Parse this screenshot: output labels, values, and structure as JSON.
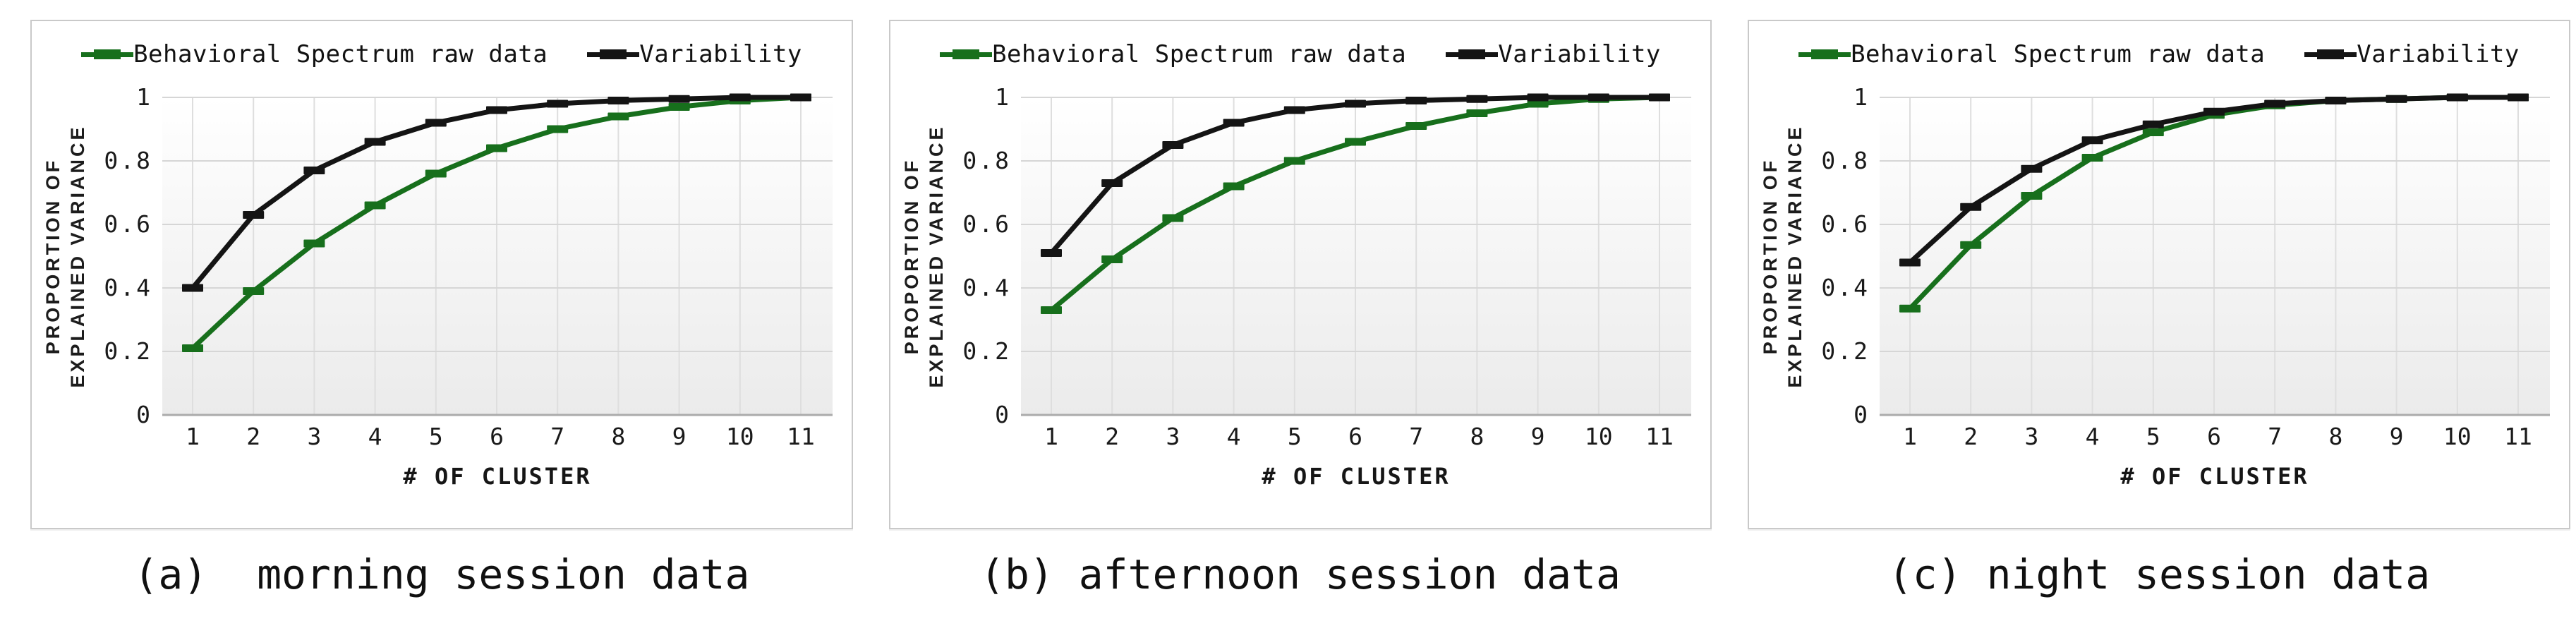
{
  "axes": {
    "y_label_line1": "PROPORTION OF",
    "y_label_line2": "EXPLAINED VARIANCE",
    "x_label": "# OF CLUSTER",
    "x_tick_labels": [
      "1",
      "2",
      "3",
      "4",
      "5",
      "6",
      "7",
      "8",
      "9",
      "10",
      "11"
    ],
    "y_tick_labels": [
      "0",
      "0.2",
      "0.4",
      "0.6",
      "0.8",
      "1"
    ]
  },
  "chart_data": [
    {
      "type": "line",
      "caption": "(a)  morning session data",
      "xlabel": "# OF CLUSTER",
      "ylabel": "PROPORTION OF EXPLAINED VARIANCE",
      "x": [
        1,
        2,
        3,
        4,
        5,
        6,
        7,
        8,
        9,
        10,
        11
      ],
      "ylim": [
        0,
        1
      ],
      "y_ticks": [
        0,
        0.2,
        0.4,
        0.6,
        0.8,
        1
      ],
      "grid": true,
      "legend_position": "top",
      "series": [
        {
          "name": "Behavioral Spectrum raw data",
          "color": "#176f1c",
          "values": [
            0.21,
            0.39,
            0.54,
            0.66,
            0.76,
            0.84,
            0.9,
            0.94,
            0.97,
            0.99,
            1.0
          ]
        },
        {
          "name": "Variability",
          "color": "#141414",
          "values": [
            0.4,
            0.63,
            0.77,
            0.86,
            0.92,
            0.96,
            0.98,
            0.99,
            0.995,
            1.0,
            1.0
          ]
        }
      ]
    },
    {
      "type": "line",
      "caption": "(b) afternoon session data",
      "xlabel": "# OF CLUSTER",
      "ylabel": "PROPORTION OF EXPLAINED VARIANCE",
      "x": [
        1,
        2,
        3,
        4,
        5,
        6,
        7,
        8,
        9,
        10,
        11
      ],
      "ylim": [
        0,
        1
      ],
      "y_ticks": [
        0,
        0.2,
        0.4,
        0.6,
        0.8,
        1
      ],
      "grid": true,
      "legend_position": "top",
      "series": [
        {
          "name": "Behavioral Spectrum raw data",
          "color": "#176f1c",
          "values": [
            0.33,
            0.49,
            0.62,
            0.72,
            0.8,
            0.86,
            0.91,
            0.95,
            0.98,
            0.995,
            1.0
          ]
        },
        {
          "name": "Variability",
          "color": "#141414",
          "values": [
            0.51,
            0.73,
            0.85,
            0.92,
            0.96,
            0.98,
            0.99,
            0.995,
            1.0,
            1.0,
            1.0
          ]
        }
      ]
    },
    {
      "type": "line",
      "caption": "(c) night session data",
      "xlabel": "# OF CLUSTER",
      "ylabel": "PROPORTION OF EXPLAINED VARIANCE",
      "x": [
        1,
        2,
        3,
        4,
        5,
        6,
        7,
        8,
        9,
        10,
        11
      ],
      "ylim": [
        0,
        1
      ],
      "y_ticks": [
        0,
        0.2,
        0.4,
        0.6,
        0.8,
        1
      ],
      "grid": true,
      "legend_position": "top",
      "series": [
        {
          "name": "Behavioral Spectrum raw data",
          "color": "#176f1c",
          "values": [
            0.335,
            0.535,
            0.69,
            0.81,
            0.89,
            0.945,
            0.975,
            0.99,
            0.995,
            1.0,
            1.0
          ]
        },
        {
          "name": "Variability",
          "color": "#141414",
          "values": [
            0.48,
            0.655,
            0.775,
            0.865,
            0.915,
            0.955,
            0.98,
            0.99,
            0.995,
            1.0,
            1.0
          ]
        }
      ]
    }
  ],
  "style_colors": {
    "behavioral_green": "#176f1c",
    "variability_black": "#141414",
    "gridline": "#d6d6d6",
    "baseline": "#ababab",
    "panel_border": "#c9c9c9"
  }
}
